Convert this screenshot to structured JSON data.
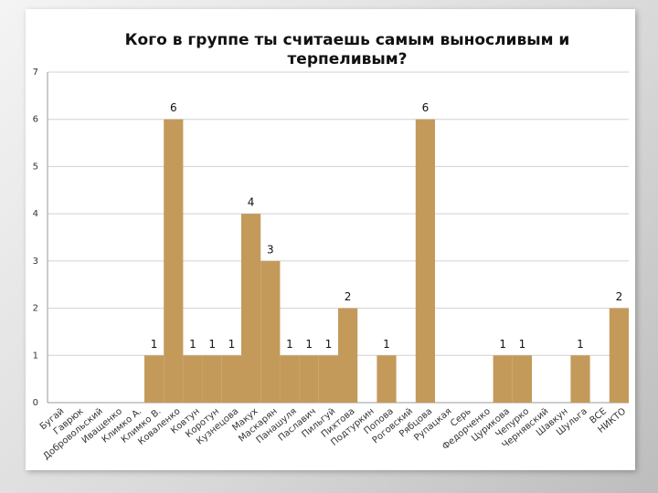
{
  "chart_data": {
    "type": "bar",
    "title": "Кого в группе ты считаешь самым выносливым и терпеливым?",
    "categories": [
      "Бугай",
      "Гаврюк",
      "Добровольский",
      "Иващенко",
      "Климко А.",
      "Климко В.",
      "Коваленко",
      "Ковтун",
      "Коротун",
      "Кузнецова",
      "Макух",
      "Маскарян",
      "Панашуля",
      "Паславич",
      "Пильгуй",
      "Пихтова",
      "Подтуркин",
      "Попова",
      "Роговский",
      "Рябцова",
      "Рупацкая",
      "Серь",
      "Федорченко",
      "Цурикова",
      "Чепурко",
      "Чернявский",
      "Шавкун",
      "Шульга",
      "ВСЕ",
      "НИКТО"
    ],
    "values": [
      0,
      0,
      0,
      0,
      0,
      1,
      6,
      1,
      1,
      1,
      4,
      3,
      1,
      1,
      1,
      2,
      0,
      1,
      0,
      6,
      0,
      0,
      0,
      1,
      1,
      0,
      0,
      1,
      0,
      2
    ],
    "color": "#c49a5a",
    "ylim": [
      0,
      7
    ],
    "yticks": [
      0,
      1,
      2,
      3,
      4,
      5,
      6,
      7
    ],
    "grid": true
  }
}
